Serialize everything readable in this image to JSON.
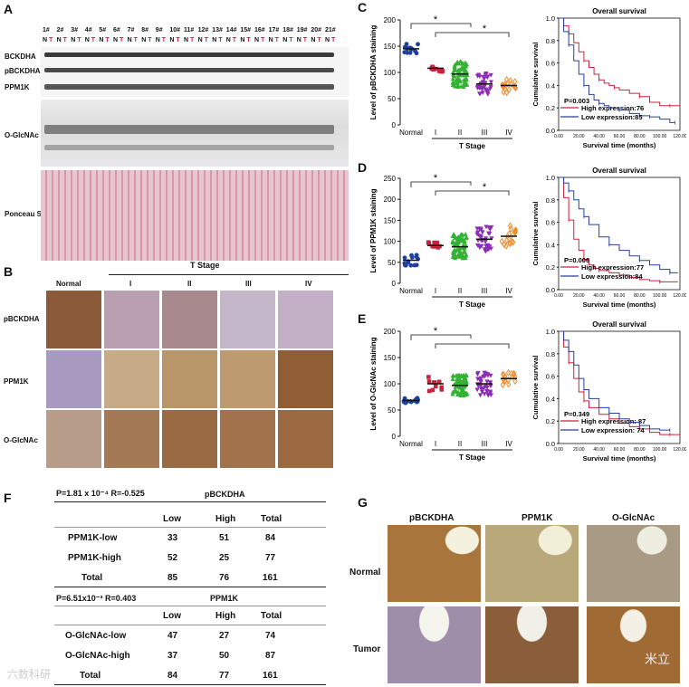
{
  "panels": {
    "a": "A",
    "b": "B",
    "c": "C",
    "d": "D",
    "e": "E",
    "f": "F",
    "g": "G"
  },
  "blot": {
    "samples": [
      "1#",
      "2#",
      "3#",
      "4#",
      "5#",
      "6#",
      "7#",
      "8#",
      "9#",
      "10#",
      "11#",
      "12#",
      "13#",
      "14#",
      "15#",
      "16#",
      "17#",
      "18#",
      "19#",
      "20#",
      "21#"
    ],
    "nt": [
      "N",
      "T"
    ],
    "rows": [
      "BCKDHA",
      "pBCKDHA",
      "PPM1K",
      "O-GlcNAc",
      "Ponceau S"
    ]
  },
  "ihc": {
    "title": "T Stage",
    "cols": [
      "Normal",
      "I",
      "II",
      "III",
      "IV"
    ],
    "rows": [
      "pBCKDHA",
      "PPM1K",
      "O-GlcNAc"
    ]
  },
  "chart_data": [
    {
      "type": "scatter",
      "ylabel": "Level of pBCKDHA  staining",
      "xlabel": "T Stage",
      "categories": [
        "Normal",
        "I",
        "II",
        "III",
        "IV"
      ],
      "ylim": [
        0,
        200
      ],
      "yticks": [
        "0",
        "50",
        "100",
        "150",
        "200"
      ],
      "means": [
        145,
        108,
        97,
        78,
        75
      ],
      "counts": [
        14,
        10,
        80,
        40,
        18
      ],
      "spreads": [
        10,
        8,
        25,
        22,
        15
      ],
      "colors": [
        "#1f3f9e",
        "#c8233c",
        "#33b233",
        "#8a2fb0",
        "#f08c2a"
      ],
      "markers": [
        "circle",
        "square",
        "triangle",
        "invtriangle",
        "diamond"
      ],
      "star": "*"
    },
    {
      "type": "scatter",
      "ylabel": "Level of PPM1K  staining",
      "xlabel": "T Stage",
      "categories": [
        "Normal",
        "I",
        "II",
        "III",
        "IV"
      ],
      "ylim": [
        0,
        250
      ],
      "yticks": [
        "0",
        "50",
        "100",
        "150",
        "200",
        "250"
      ],
      "means": [
        55,
        90,
        87,
        105,
        112
      ],
      "counts": [
        14,
        10,
        80,
        40,
        18
      ],
      "spreads": [
        15,
        8,
        30,
        30,
        28
      ],
      "colors": [
        "#1f3f9e",
        "#c8233c",
        "#33b233",
        "#8a2fb0",
        "#f08c2a"
      ],
      "markers": [
        "circle",
        "square",
        "triangle",
        "invtriangle",
        "diamond"
      ],
      "star": "*"
    },
    {
      "type": "scatter",
      "ylabel": "Level of O-GlcNAc  staining",
      "xlabel": "T Stage",
      "categories": [
        "Normal",
        "I",
        "II",
        "III",
        "IV"
      ],
      "ylim": [
        0,
        200
      ],
      "yticks": [
        "0",
        "50",
        "100",
        "150",
        "200"
      ],
      "means": [
        68,
        100,
        97,
        100,
        110
      ],
      "counts": [
        14,
        10,
        80,
        40,
        18
      ],
      "spreads": [
        6,
        14,
        20,
        22,
        14
      ],
      "colors": [
        "#1f3f9e",
        "#c8233c",
        "#33b233",
        "#8a2fb0",
        "#f08c2a"
      ],
      "markers": [
        "circle",
        "square",
        "triangle",
        "invtriangle",
        "diamond"
      ],
      "star": "*"
    },
    {
      "type": "line",
      "title": "Overall survival",
      "xlabel": "Survival time (months)",
      "ylabel": "Cumulative survival",
      "xticks": [
        "0.00",
        "20.00",
        "40.00",
        "60.00",
        "80.00",
        "100.00",
        "120.00"
      ],
      "yticks": [
        "0.0",
        "0.2",
        "0.4",
        "0.6",
        "0.8",
        "1.0"
      ],
      "xlim": [
        0,
        120
      ],
      "ylim": [
        0,
        1
      ],
      "pvalue": "P=0.003",
      "series": [
        {
          "name": "High expression:76",
          "color": "#c8233c",
          "x": [
            0,
            5,
            10,
            15,
            20,
            25,
            30,
            35,
            40,
            45,
            50,
            55,
            60,
            70,
            80,
            90,
            100,
            110,
            120
          ],
          "y": [
            1.0,
            0.93,
            0.86,
            0.78,
            0.7,
            0.62,
            0.56,
            0.5,
            0.45,
            0.42,
            0.4,
            0.38,
            0.36,
            0.33,
            0.3,
            0.25,
            0.22,
            0.22,
            0.22
          ]
        },
        {
          "name": "Low expression:85",
          "color": "#2a3fa0",
          "x": [
            0,
            5,
            10,
            15,
            20,
            25,
            30,
            35,
            40,
            45,
            50,
            60,
            70,
            80,
            90,
            100,
            110,
            115
          ],
          "y": [
            1.0,
            0.88,
            0.76,
            0.62,
            0.5,
            0.4,
            0.32,
            0.27,
            0.24,
            0.22,
            0.2,
            0.18,
            0.15,
            0.13,
            0.12,
            0.1,
            0.07,
            0.07
          ]
        }
      ]
    },
    {
      "type": "line",
      "title": "Overall survival",
      "xlabel": "Survival time (months)",
      "ylabel": "Cumulative survival",
      "xticks": [
        "0.00",
        "20.00",
        "40.00",
        "60.00",
        "80.00",
        "100.00",
        "120.00"
      ],
      "yticks": [
        "0.0",
        "0.2",
        "0.4",
        "0.6",
        "0.8",
        "1.0"
      ],
      "xlim": [
        0,
        120
      ],
      "ylim": [
        0,
        1
      ],
      "pvalue": "P=0.006",
      "series": [
        {
          "name": "High expression:77",
          "color": "#c8233c",
          "x": [
            0,
            5,
            10,
            15,
            20,
            25,
            30,
            35,
            40,
            50,
            60,
            70,
            80,
            90,
            100,
            110,
            118
          ],
          "y": [
            1.0,
            0.82,
            0.62,
            0.45,
            0.35,
            0.27,
            0.22,
            0.19,
            0.17,
            0.15,
            0.13,
            0.11,
            0.09,
            0.08,
            0.07,
            0.07,
            0.07
          ]
        },
        {
          "name": "Low expression:84",
          "color": "#2a3fa0",
          "x": [
            0,
            5,
            10,
            15,
            20,
            25,
            30,
            40,
            50,
            60,
            70,
            80,
            90,
            100,
            110,
            118
          ],
          "y": [
            1.0,
            0.95,
            0.88,
            0.8,
            0.72,
            0.65,
            0.58,
            0.47,
            0.4,
            0.35,
            0.3,
            0.26,
            0.22,
            0.18,
            0.15,
            0.15
          ]
        }
      ]
    },
    {
      "type": "line",
      "title": "Overall survival",
      "xlabel": "Survival time (months)",
      "ylabel": "Cumulative survival",
      "xticks": [
        "0.00",
        "20.00",
        "40.00",
        "60.00",
        "80.00",
        "100.00",
        "120.00"
      ],
      "yticks": [
        "0.0",
        "0.2",
        "0.4",
        "0.6",
        "0.8",
        "1.0"
      ],
      "xlim": [
        0,
        120
      ],
      "ylim": [
        0,
        1
      ],
      "pvalue": "P=0.349",
      "series": [
        {
          "name": "High expression: 87",
          "color": "#c8233c",
          "x": [
            0,
            5,
            10,
            15,
            20,
            25,
            30,
            40,
            50,
            60,
            70,
            80,
            90,
            100,
            110,
            120
          ],
          "y": [
            1.0,
            0.86,
            0.72,
            0.58,
            0.46,
            0.38,
            0.32,
            0.26,
            0.22,
            0.18,
            0.15,
            0.13,
            0.1,
            0.08,
            0.08,
            0.08
          ]
        },
        {
          "name": "Low expression: 74",
          "color": "#2a3fa0",
          "x": [
            0,
            5,
            10,
            15,
            20,
            25,
            30,
            40,
            50,
            60,
            70,
            80,
            90,
            100,
            110
          ],
          "y": [
            1.0,
            0.92,
            0.82,
            0.7,
            0.58,
            0.48,
            0.4,
            0.32,
            0.27,
            0.22,
            0.19,
            0.16,
            0.13,
            0.12,
            0.12
          ]
        }
      ]
    }
  ],
  "table1": {
    "stat": "P=1.81 x 10⁻⁴ R=-0.525",
    "group": "pBCKDHA",
    "cols": [
      "Low",
      "High",
      "Total"
    ],
    "rows": [
      {
        "label": "PPM1K-low",
        "v": [
          "33",
          "51",
          "84"
        ]
      },
      {
        "label": "PPM1K-high",
        "v": [
          "52",
          "25",
          "77"
        ]
      },
      {
        "label": "Total",
        "v": [
          "85",
          "76",
          "161"
        ]
      }
    ]
  },
  "table2": {
    "stat": "P=6.51x10⁻³  R=0.403",
    "group": "PPM1K",
    "cols": [
      "Low",
      "High",
      "Total"
    ],
    "rows": [
      {
        "label": "O-GlcNAc-low",
        "v": [
          "47",
          "27",
          "74"
        ]
      },
      {
        "label": "O-GlcNAc-high",
        "v": [
          "37",
          "50",
          "87"
        ]
      },
      {
        "label": "Total",
        "v": [
          "84",
          "77",
          "161"
        ]
      }
    ]
  },
  "g": {
    "cols": [
      "pBCKDHA",
      "PPM1K",
      "O-GlcNAc"
    ],
    "rows": [
      "Normal",
      "Tumor"
    ]
  },
  "watermark": {
    "left": "六数科研",
    "right": "米立"
  }
}
